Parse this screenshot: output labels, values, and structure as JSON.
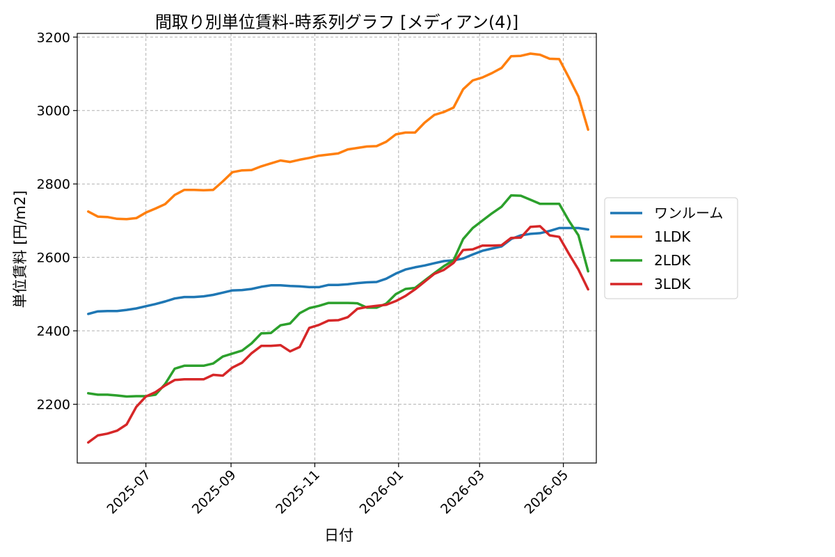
{
  "chart_data": {
    "type": "line",
    "title": "間取り別単位賃料-時系列グラフ [メディアン(4)]",
    "xlabel": "日付",
    "ylabel": "単位賃料 [円/m2]",
    "xlim": [
      "2025-05-12",
      "2026-05-25"
    ],
    "ylim": [
      2040,
      3210
    ],
    "y_ticks": [
      2200,
      2400,
      2600,
      2800,
      3000,
      3200
    ],
    "x_ticks": [
      {
        "date": "2025-07-01",
        "label": "2025-07"
      },
      {
        "date": "2025-09-01",
        "label": "2025-09"
      },
      {
        "date": "2025-11-01",
        "label": "2025-11"
      },
      {
        "date": "2026-01-01",
        "label": "2026-01"
      },
      {
        "date": "2026-03-01",
        "label": "2026-03"
      },
      {
        "date": "2026-05-01",
        "label": "2026-05"
      }
    ],
    "grid": true,
    "legend_position": "outside-right",
    "x": [
      "2025-05-20",
      "2025-05-27",
      "2025-06-03",
      "2025-06-10",
      "2025-06-17",
      "2025-06-24",
      "2025-07-01",
      "2025-07-08",
      "2025-07-15",
      "2025-07-22",
      "2025-07-29",
      "2025-08-05",
      "2025-08-12",
      "2025-08-19",
      "2025-08-26",
      "2025-09-02",
      "2025-09-09",
      "2025-09-16",
      "2025-09-23",
      "2025-09-30",
      "2025-10-07",
      "2025-10-14",
      "2025-10-21",
      "2025-10-28",
      "2025-11-04",
      "2025-11-11",
      "2025-11-18",
      "2025-11-25",
      "2025-12-02",
      "2025-12-09",
      "2025-12-16",
      "2025-12-23",
      "2025-12-30",
      "2026-01-06",
      "2026-01-13",
      "2026-01-20",
      "2026-01-27",
      "2026-02-03",
      "2026-02-10",
      "2026-02-17",
      "2026-02-24",
      "2026-03-03",
      "2026-03-10",
      "2026-03-17",
      "2026-03-24",
      "2026-03-31",
      "2026-04-07",
      "2026-04-14",
      "2026-04-21",
      "2026-04-28",
      "2026-05-05",
      "2026-05-12",
      "2026-05-19"
    ],
    "series": [
      {
        "name": "ワンルーム",
        "color": "#1f77b4",
        "values": [
          2446,
          2453,
          2454,
          2454,
          2457,
          2461,
          2467,
          2473,
          2480,
          2488,
          2492,
          2492,
          2494,
          2498,
          2504,
          2510,
          2511,
          2514,
          2520,
          2524,
          2524,
          2522,
          2521,
          2519,
          2519,
          2525,
          2525,
          2527,
          2530,
          2532,
          2533,
          2542,
          2556,
          2567,
          2573,
          2578,
          2584,
          2590,
          2592,
          2597,
          2608,
          2618,
          2624,
          2630,
          2650,
          2660,
          2664,
          2666,
          2672,
          2680,
          2680,
          2680,
          2676
        ]
      },
      {
        "name": "1LDK",
        "color": "#ff7f0e",
        "values": [
          2725,
          2711,
          2710,
          2705,
          2704,
          2707,
          2722,
          2733,
          2745,
          2770,
          2784,
          2784,
          2783,
          2784,
          2807,
          2832,
          2837,
          2838,
          2848,
          2856,
          2864,
          2860,
          2866,
          2871,
          2877,
          2880,
          2883,
          2894,
          2898,
          2902,
          2903,
          2915,
          2935,
          2940,
          2940,
          2967,
          2988,
          2996,
          3008,
          3058,
          3082,
          3090,
          3102,
          3116,
          3148,
          3149,
          3155,
          3152,
          3141,
          3140,
          3090,
          3038,
          2948
        ]
      },
      {
        "name": "2LDK",
        "color": "#2ca02c",
        "values": [
          2230,
          2226,
          2226,
          2224,
          2221,
          2222,
          2222,
          2226,
          2255,
          2297,
          2305,
          2305,
          2305,
          2311,
          2330,
          2338,
          2346,
          2366,
          2393,
          2394,
          2415,
          2420,
          2448,
          2462,
          2468,
          2476,
          2476,
          2476,
          2475,
          2463,
          2463,
          2474,
          2500,
          2514,
          2517,
          2537,
          2557,
          2576,
          2592,
          2650,
          2680,
          2700,
          2720,
          2738,
          2769,
          2768,
          2757,
          2746,
          2746,
          2746,
          2700,
          2660,
          2562
        ]
      },
      {
        "name": "3LDK",
        "color": "#d62728",
        "values": [
          2096,
          2115,
          2120,
          2128,
          2145,
          2193,
          2221,
          2233,
          2251,
          2266,
          2268,
          2268,
          2268,
          2280,
          2278,
          2300,
          2313,
          2339,
          2359,
          2359,
          2361,
          2344,
          2356,
          2408,
          2416,
          2428,
          2429,
          2437,
          2460,
          2465,
          2468,
          2471,
          2481,
          2495,
          2513,
          2534,
          2555,
          2566,
          2585,
          2620,
          2622,
          2632,
          2632,
          2633,
          2653,
          2654,
          2683,
          2685,
          2660,
          2656,
          2610,
          2567,
          2513
        ]
      }
    ]
  }
}
